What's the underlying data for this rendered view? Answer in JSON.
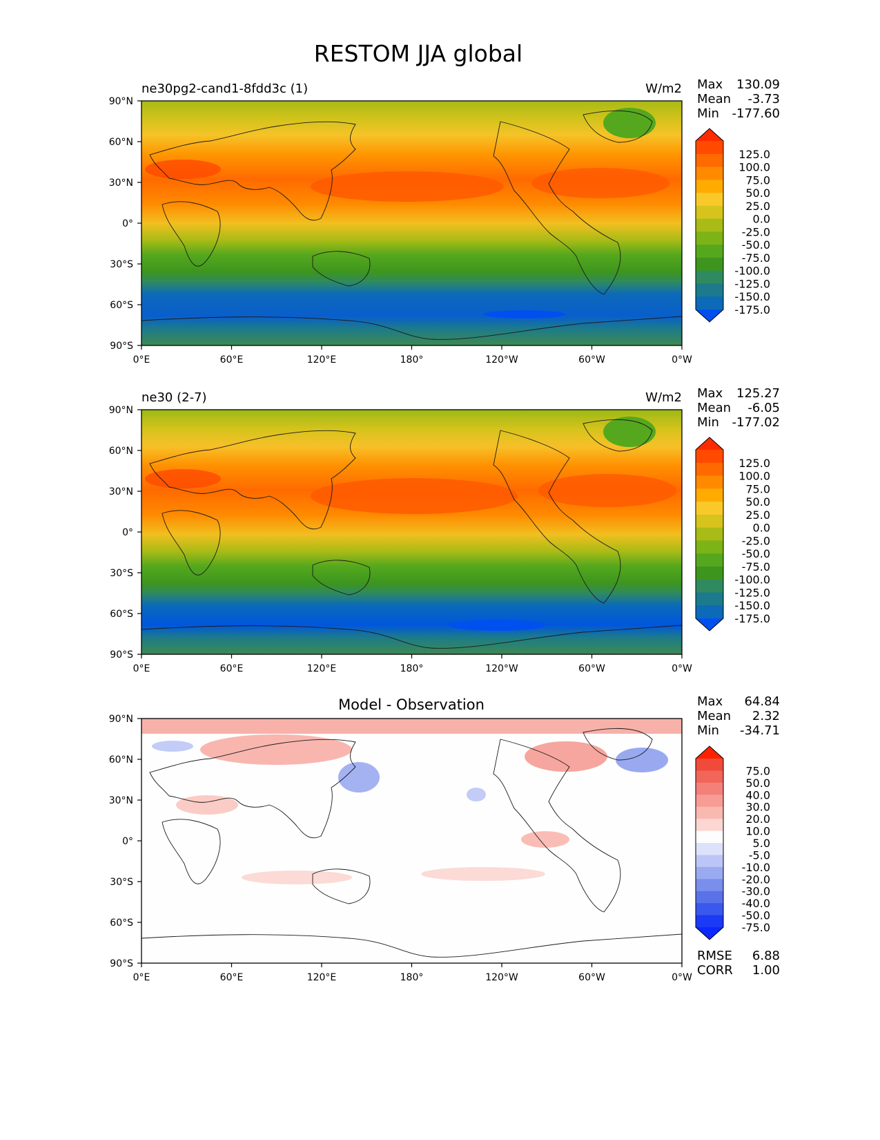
{
  "figure": {
    "title": "RESTOM JJA global"
  },
  "axis_ticks": {
    "lat": [
      "90°N",
      "60°N",
      "30°N",
      "0°",
      "30°S",
      "60°S",
      "90°S"
    ],
    "lon": [
      "0°E",
      "60°E",
      "120°E",
      "180°",
      "120°W",
      "60°W",
      "0°W"
    ]
  },
  "chart_data": [
    {
      "type": "heatmap",
      "title": "ne30pg2-cand1-8fdd3c (1)",
      "units": "W/m2",
      "stats": {
        "max_label": "Max",
        "max": "130.09",
        "mean_label": "Mean",
        "mean": "-3.73",
        "min_label": "Min",
        "min": "-177.60"
      },
      "xlim": [
        0,
        360
      ],
      "ylim": [
        -90,
        90
      ],
      "colorbar": {
        "levels": [
          "125.0",
          "100.0",
          "75.0",
          "50.0",
          "25.0",
          "0.0",
          "-25.0",
          "-50.0",
          "-75.0",
          "-100.0",
          "-125.0",
          "-150.0",
          "-175.0"
        ],
        "colors": [
          "#ff2b00",
          "#ff4a00",
          "#ff6a00",
          "#ff8a00",
          "#ffab00",
          "#f9c92a",
          "#d6c31c",
          "#a8bb16",
          "#7cb317",
          "#55a81d",
          "#3d951e",
          "#2f8a60",
          "#1c7a8c",
          "#0c6ab8",
          "#0050f0"
        ]
      }
    },
    {
      "type": "heatmap",
      "title": "ne30 (2-7)",
      "units": "W/m2",
      "stats": {
        "max_label": "Max",
        "max": "125.27",
        "mean_label": "Mean",
        "mean": "-6.05",
        "min_label": "Min",
        "min": "-177.02"
      },
      "xlim": [
        0,
        360
      ],
      "ylim": [
        -90,
        90
      ],
      "colorbar": {
        "levels": [
          "125.0",
          "100.0",
          "75.0",
          "50.0",
          "25.0",
          "0.0",
          "-25.0",
          "-50.0",
          "-75.0",
          "-100.0",
          "-125.0",
          "-150.0",
          "-175.0"
        ],
        "colors": [
          "#ff2b00",
          "#ff4a00",
          "#ff6a00",
          "#ff8a00",
          "#ffab00",
          "#f9c92a",
          "#d6c31c",
          "#a8bb16",
          "#7cb317",
          "#55a81d",
          "#3d951e",
          "#2f8a60",
          "#1c7a8c",
          "#0c6ab8",
          "#0050f0"
        ]
      }
    },
    {
      "type": "heatmap",
      "title": "Model - Observation",
      "units": "",
      "stats": {
        "max_label": "Max",
        "max": "64.84",
        "mean_label": "Mean",
        "mean": "2.32",
        "min_label": "Min",
        "min": "-34.71"
      },
      "rmse_label": "RMSE",
      "rmse": "6.88",
      "corr_label": "CORR",
      "corr": "1.00",
      "xlim": [
        0,
        360
      ],
      "ylim": [
        -90,
        90
      ],
      "colorbar": {
        "levels": [
          "75.0",
          "50.0",
          "40.0",
          "30.0",
          "20.0",
          "10.0",
          "5.0",
          "-5.0",
          "-10.0",
          "-20.0",
          "-30.0",
          "-40.0",
          "-50.0",
          "-75.0"
        ],
        "colors": [
          "#ff2200",
          "#f04a3a",
          "#f2665a",
          "#f4807a",
          "#f79c94",
          "#f9b8b0",
          "#fcd6d2",
          "#fdfdfd",
          "#dde2fb",
          "#bcc6f6",
          "#9aaaf1",
          "#7a8eec",
          "#5a72e8",
          "#3a58ee",
          "#1a3af5",
          "#0a28ff"
        ]
      }
    }
  ]
}
